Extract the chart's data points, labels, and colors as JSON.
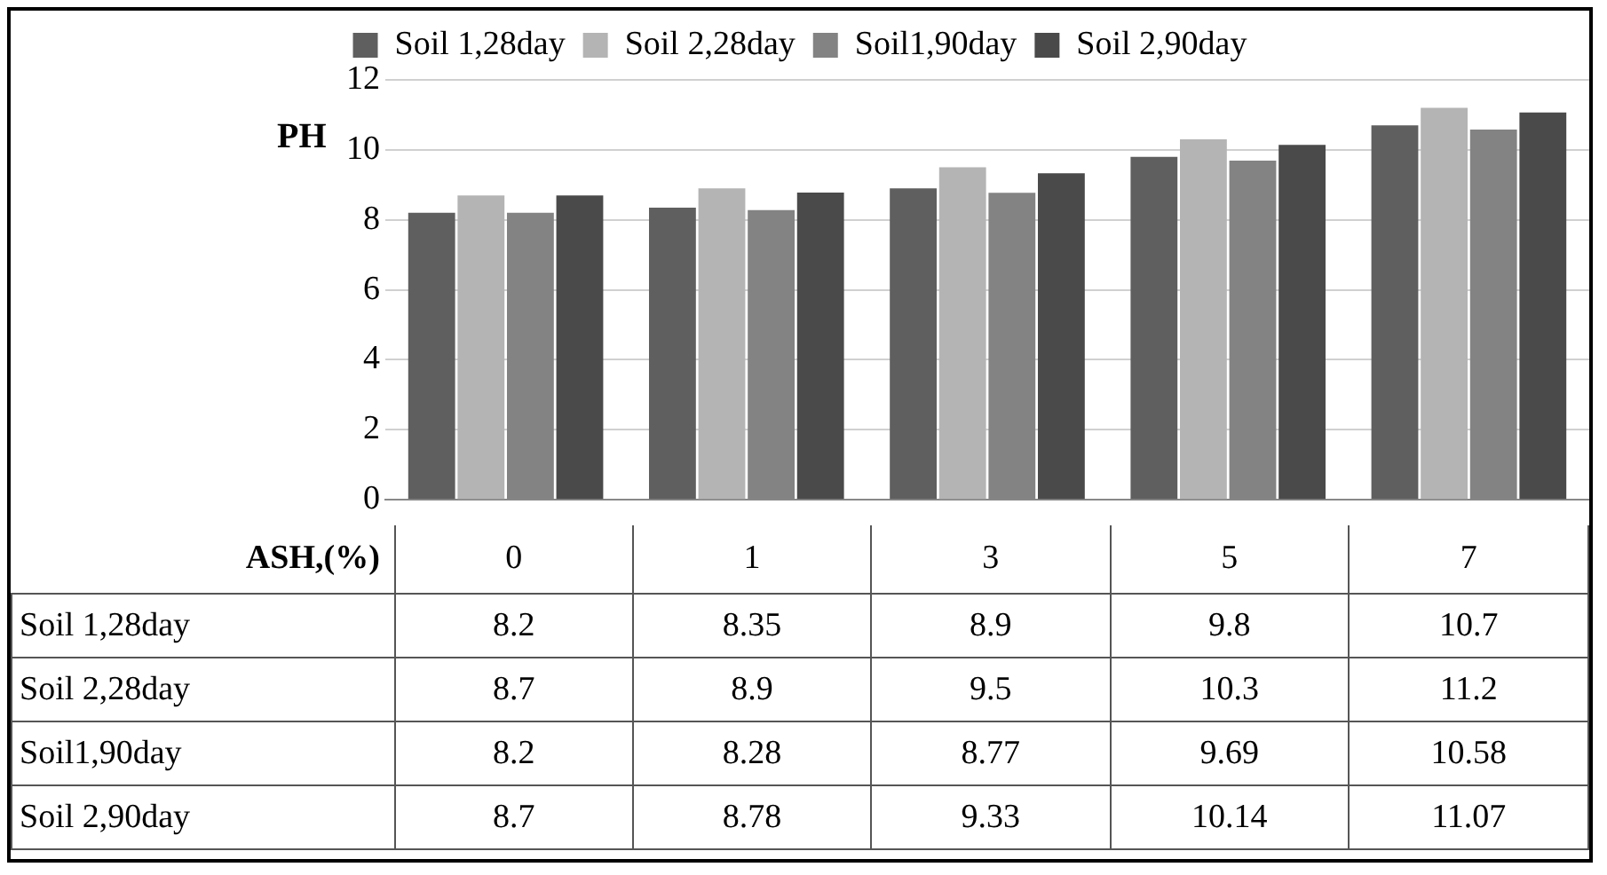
{
  "chart_data": {
    "type": "bar",
    "ylabel": "PH",
    "xlabel": "ASH,(%)",
    "categories": [
      "0",
      "1",
      "3",
      "5",
      "7"
    ],
    "series": [
      {
        "name": "Soil 1,28day",
        "color": "#5f5f5f",
        "values": [
          8.2,
          8.35,
          8.9,
          9.8,
          10.7
        ]
      },
      {
        "name": "Soil 2,28day",
        "color": "#b4b4b4",
        "values": [
          8.7,
          8.9,
          9.5,
          10.3,
          11.2
        ]
      },
      {
        "name": "Soil1,90day",
        "color": "#838383",
        "values": [
          8.2,
          8.28,
          8.77,
          9.69,
          10.58
        ]
      },
      {
        "name": "Soil 2,90day",
        "color": "#4a4a4a",
        "values": [
          8.7,
          8.78,
          9.33,
          10.14,
          11.07
        ]
      }
    ],
    "ylim": [
      0,
      12
    ],
    "yticks": [
      0,
      2,
      4,
      6,
      8,
      10,
      12
    ],
    "grid": "y",
    "legend": "top",
    "tick_labels": "y",
    "data_labels": true
  }
}
